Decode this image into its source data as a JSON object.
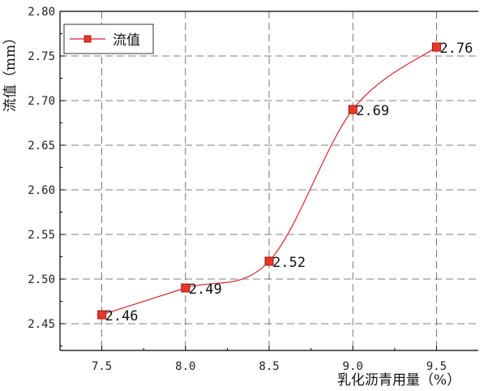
{
  "chart_data": {
    "type": "line",
    "x": [
      7.5,
      8.0,
      8.5,
      9.0,
      9.5
    ],
    "x_tick_labels": [
      "7.5",
      "8.0",
      "8.5",
      "9.0",
      "9.5"
    ],
    "xlim": [
      7.25,
      9.75
    ],
    "ylim": [
      2.42,
      2.8
    ],
    "y_ticks": [
      2.45,
      2.5,
      2.55,
      2.6,
      2.65,
      2.7,
      2.75,
      2.8
    ],
    "y_tick_labels": [
      "2.45",
      "2.50",
      "2.55",
      "2.60",
      "2.65",
      "2.70",
      "2.75",
      "2.80"
    ],
    "xlabel": "乳化沥青用量（%）",
    "ylabel": "流值（mm）",
    "grid": true,
    "legend_position": "top-left",
    "series": [
      {
        "name": "流值",
        "values": [
          2.46,
          2.49,
          2.52,
          2.69,
          2.76
        ],
        "data_labels": [
          "2.46",
          "2.49",
          "2.52",
          "2.69",
          "2.76"
        ],
        "line_color": "#d62728",
        "marker_color": "#e8382b",
        "marker_stroke": "#a31512",
        "marker": "square"
      }
    ]
  }
}
